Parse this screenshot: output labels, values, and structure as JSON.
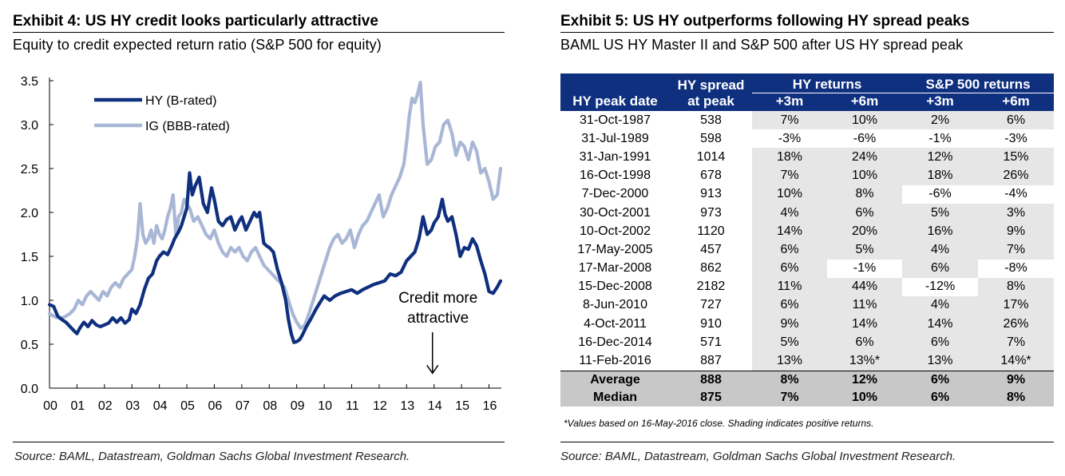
{
  "exhibit4": {
    "title": "Exhibit 4: US HY credit looks particularly attractive",
    "subtitle": "Equity to credit expected return ratio (S&P 500 for equity)",
    "source": "Source: BAML, Datastream, Goldman Sachs Global Investment Research."
  },
  "exhibit5": {
    "title": "Exhibit 5: US HY outperforms following HY spread peaks",
    "subtitle": "BAML US HY Master II and S&P 500 after US HY spread peak",
    "header": {
      "peak_date": "HY peak date",
      "spread_line1": "HY spread",
      "spread_line2": "at peak",
      "hy_returns": "HY returns",
      "sp_returns": "S&P 500 returns",
      "m3": "+3m",
      "m6": "+6m"
    },
    "rows": [
      {
        "date": "31-Oct-1987",
        "spread": "538",
        "hy3": "7%",
        "hy6": "10%",
        "sp3": "2%",
        "sp6": "6%"
      },
      {
        "date": "31-Jul-1989",
        "spread": "598",
        "hy3": "-3%",
        "hy6": "-6%",
        "sp3": "-1%",
        "sp6": "-3%"
      },
      {
        "date": "31-Jan-1991",
        "spread": "1014",
        "hy3": "18%",
        "hy6": "24%",
        "sp3": "12%",
        "sp6": "15%"
      },
      {
        "date": "16-Oct-1998",
        "spread": "678",
        "hy3": "7%",
        "hy6": "10%",
        "sp3": "18%",
        "sp6": "26%"
      },
      {
        "date": "7-Dec-2000",
        "spread": "913",
        "hy3": "10%",
        "hy6": "8%",
        "sp3": "-6%",
        "sp6": "-4%"
      },
      {
        "date": "30-Oct-2001",
        "spread": "973",
        "hy3": "4%",
        "hy6": "6%",
        "sp3": "5%",
        "sp6": "3%"
      },
      {
        "date": "10-Oct-2002",
        "spread": "1120",
        "hy3": "14%",
        "hy6": "20%",
        "sp3": "16%",
        "sp6": "9%"
      },
      {
        "date": "17-May-2005",
        "spread": "457",
        "hy3": "6%",
        "hy6": "5%",
        "sp3": "4%",
        "sp6": "7%"
      },
      {
        "date": "17-Mar-2008",
        "spread": "862",
        "hy3": "6%",
        "hy6": "-1%",
        "sp3": "6%",
        "sp6": "-8%"
      },
      {
        "date": "15-Dec-2008",
        "spread": "2182",
        "hy3": "11%",
        "hy6": "44%",
        "sp3": "-12%",
        "sp6": "8%"
      },
      {
        "date": "8-Jun-2010",
        "spread": "727",
        "hy3": "6%",
        "hy6": "11%",
        "sp3": "4%",
        "sp6": "17%"
      },
      {
        "date": "4-Oct-2011",
        "spread": "910",
        "hy3": "9%",
        "hy6": "14%",
        "sp3": "14%",
        "sp6": "26%"
      },
      {
        "date": "16-Dec-2014",
        "spread": "571",
        "hy3": "5%",
        "hy6": "6%",
        "sp3": "6%",
        "sp6": "7%"
      },
      {
        "date": "11-Feb-2016",
        "spread": "887",
        "hy3": "13%",
        "hy6": "13%*",
        "sp3": "13%",
        "sp6": "14%*"
      }
    ],
    "summary": [
      {
        "label": "Average",
        "spread": "888",
        "hy3": "8%",
        "hy6": "12%",
        "sp3": "6%",
        "sp6": "9%"
      },
      {
        "label": "Median",
        "spread": "875",
        "hy3": "7%",
        "hy6": "10%",
        "sp3": "6%",
        "sp6": "8%"
      }
    ],
    "footnote": "*Values based on 16-May-2016 close. Shading indicates positive returns.",
    "source": "Source: BAML, Datastream, Goldman Sachs Global Investment Research."
  },
  "colors": {
    "hy_line": "#0f2f7f",
    "ig_line": "#a8b7d6",
    "header_bg": "#0f2f7f",
    "positive_shade": "#e6e6e6",
    "summary_shade": "#c8c8c8"
  },
  "chart_data": {
    "type": "line",
    "title": "Exhibit 4: US HY credit looks particularly attractive",
    "subtitle": "Equity to credit expected return ratio (S&P 500 for equity)",
    "xlabel": "",
    "ylabel": "",
    "xlim": [
      2000.0,
      2016.45
    ],
    "ylim": [
      0.0,
      3.5
    ],
    "yticks": [
      "0.0",
      "0.5",
      "1.0",
      "1.5",
      "2.0",
      "2.5",
      "3.0",
      "3.5"
    ],
    "xticks": [
      {
        "value": 2000,
        "label": "00"
      },
      {
        "value": 2001,
        "label": "01"
      },
      {
        "value": 2002,
        "label": "02"
      },
      {
        "value": 2003,
        "label": "03"
      },
      {
        "value": 2004,
        "label": "04"
      },
      {
        "value": 2005,
        "label": "05"
      },
      {
        "value": 2006,
        "label": "06"
      },
      {
        "value": 2007,
        "label": "07"
      },
      {
        "value": 2008,
        "label": "08"
      },
      {
        "value": 2009,
        "label": "09"
      },
      {
        "value": 2010,
        "label": "10"
      },
      {
        "value": 2011,
        "label": "11"
      },
      {
        "value": 2012,
        "label": "12"
      },
      {
        "value": 2013,
        "label": "13"
      },
      {
        "value": 2014,
        "label": "14"
      },
      {
        "value": 2015,
        "label": "15"
      },
      {
        "value": 2016,
        "label": "16"
      }
    ],
    "grid": false,
    "legend": "top-left",
    "annotation": {
      "text_line1": "Credit more",
      "text_line2": "attractive",
      "x": 2014.0,
      "y": 1.0,
      "arrow_to_y": 0.17
    },
    "series": [
      {
        "name": "HY (B-rated)",
        "x": [
          2000.0,
          2000.15,
          2000.3,
          2000.45,
          2000.6,
          2000.75,
          2000.9,
          2001.0,
          2001.1,
          2001.25,
          2001.4,
          2001.55,
          2001.7,
          2001.85,
          2002.0,
          2002.15,
          2002.3,
          2002.45,
          2002.6,
          2002.75,
          2002.9,
          2003.0,
          2003.15,
          2003.3,
          2003.45,
          2003.6,
          2003.75,
          2003.9,
          2004.0,
          2004.15,
          2004.3,
          2004.45,
          2004.55,
          2004.7,
          2004.8,
          2004.9,
          2005.0,
          2005.1,
          2005.2,
          2005.3,
          2005.45,
          2005.6,
          2005.75,
          2005.9,
          2006.0,
          2006.15,
          2006.3,
          2006.45,
          2006.6,
          2006.75,
          2006.9,
          2007.0,
          2007.15,
          2007.3,
          2007.45,
          2007.55,
          2007.65,
          2007.8,
          2007.9,
          2008.0,
          2008.15,
          2008.3,
          2008.45,
          2008.6,
          2008.7,
          2008.8,
          2008.9,
          2009.0,
          2009.1,
          2009.2,
          2009.35,
          2009.5,
          2009.7,
          2009.9,
          2010.0,
          2010.2,
          2010.4,
          2010.6,
          2010.8,
          2011.0,
          2011.2,
          2011.4,
          2011.6,
          2011.8,
          2012.0,
          2012.2,
          2012.4,
          2012.6,
          2012.8,
          2013.0,
          2013.15,
          2013.3,
          2013.45,
          2013.6,
          2013.75,
          2013.9,
          2014.0,
          2014.15,
          2014.3,
          2014.4,
          2014.5,
          2014.65,
          2014.8,
          2014.95,
          2015.1,
          2015.25,
          2015.4,
          2015.55,
          2015.7,
          2015.85,
          2016.0,
          2016.15,
          2016.3,
          2016.42
        ],
        "values": [
          0.95,
          0.93,
          0.82,
          0.78,
          0.75,
          0.7,
          0.65,
          0.62,
          0.68,
          0.75,
          0.7,
          0.77,
          0.72,
          0.7,
          0.72,
          0.74,
          0.8,
          0.75,
          0.8,
          0.74,
          0.78,
          0.9,
          0.85,
          0.95,
          1.12,
          1.25,
          1.3,
          1.45,
          1.5,
          1.55,
          1.52,
          1.62,
          1.7,
          1.78,
          1.85,
          1.95,
          2.05,
          2.45,
          2.2,
          2.3,
          2.4,
          2.1,
          2.0,
          2.28,
          2.15,
          1.9,
          1.85,
          1.92,
          1.95,
          1.8,
          1.9,
          1.95,
          1.8,
          1.9,
          2.0,
          1.95,
          2.0,
          1.65,
          1.62,
          1.6,
          1.55,
          1.35,
          1.2,
          1.0,
          0.78,
          0.62,
          0.52,
          0.53,
          0.55,
          0.6,
          0.7,
          0.78,
          0.9,
          1.0,
          1.05,
          1.0,
          1.05,
          1.08,
          1.1,
          1.12,
          1.08,
          1.12,
          1.15,
          1.18,
          1.2,
          1.22,
          1.3,
          1.28,
          1.32,
          1.45,
          1.5,
          1.55,
          1.7,
          1.95,
          1.75,
          1.8,
          1.88,
          1.95,
          2.15,
          1.98,
          1.9,
          1.95,
          1.75,
          1.5,
          1.6,
          1.58,
          1.7,
          1.62,
          1.45,
          1.3,
          1.1,
          1.08,
          1.15,
          1.22
        ]
      },
      {
        "name": "IG (BBB-rated)",
        "x": [
          2000.0,
          2000.15,
          2000.3,
          2000.45,
          2000.6,
          2000.75,
          2000.9,
          2001.05,
          2001.2,
          2001.35,
          2001.5,
          2001.65,
          2001.8,
          2001.95,
          2002.1,
          2002.25,
          2002.4,
          2002.55,
          2002.7,
          2002.85,
          2003.0,
          2003.1,
          2003.2,
          2003.3,
          2003.4,
          2003.5,
          2003.6,
          2003.7,
          2003.8,
          2003.9,
          2004.0,
          2004.1,
          2004.2,
          2004.3,
          2004.4,
          2004.5,
          2004.6,
          2004.7,
          2004.8,
          2004.9,
          2005.0,
          2005.1,
          2005.25,
          2005.4,
          2005.55,
          2005.7,
          2005.85,
          2006.0,
          2006.15,
          2006.3,
          2006.45,
          2006.6,
          2006.75,
          2006.9,
          2007.05,
          2007.2,
          2007.35,
          2007.5,
          2007.65,
          2007.8,
          2007.95,
          2008.1,
          2008.25,
          2008.4,
          2008.55,
          2008.7,
          2008.85,
          2009.0,
          2009.15,
          2009.3,
          2009.45,
          2009.6,
          2009.75,
          2009.9,
          2010.05,
          2010.2,
          2010.35,
          2010.5,
          2010.65,
          2010.8,
          2010.95,
          2011.1,
          2011.25,
          2011.4,
          2011.55,
          2011.7,
          2011.85,
          2012.0,
          2012.15,
          2012.3,
          2012.45,
          2012.6,
          2012.75,
          2012.9,
          2013.0,
          2013.1,
          2013.2,
          2013.3,
          2013.4,
          2013.5,
          2013.6,
          2013.75,
          2013.9,
          2014.05,
          2014.2,
          2014.35,
          2014.5,
          2014.65,
          2014.8,
          2014.95,
          2015.1,
          2015.25,
          2015.4,
          2015.55,
          2015.7,
          2015.85,
          2016.0,
          2016.15,
          2016.3,
          2016.42
        ],
        "values": [
          0.85,
          0.82,
          0.8,
          0.8,
          0.82,
          0.85,
          0.9,
          1.0,
          0.95,
          1.05,
          1.1,
          1.05,
          1.0,
          1.1,
          1.05,
          1.15,
          1.2,
          1.15,
          1.25,
          1.3,
          1.35,
          1.5,
          1.7,
          2.1,
          1.75,
          1.65,
          1.7,
          1.8,
          1.65,
          1.85,
          1.75,
          1.7,
          1.8,
          1.95,
          2.05,
          2.2,
          1.75,
          1.95,
          2.0,
          2.15,
          2.1,
          2.05,
          1.9,
          1.95,
          1.85,
          1.75,
          1.7,
          1.8,
          1.65,
          1.55,
          1.5,
          1.6,
          1.55,
          1.6,
          1.5,
          1.45,
          1.55,
          1.6,
          1.5,
          1.4,
          1.35,
          1.3,
          1.25,
          1.2,
          1.15,
          1.0,
          0.85,
          0.75,
          0.68,
          0.72,
          0.85,
          1.0,
          1.15,
          1.3,
          1.45,
          1.6,
          1.7,
          1.75,
          1.65,
          1.7,
          1.8,
          1.6,
          1.75,
          1.85,
          1.9,
          2.0,
          2.1,
          2.2,
          1.95,
          2.05,
          2.2,
          2.3,
          2.4,
          2.55,
          2.8,
          3.1,
          3.3,
          3.25,
          3.35,
          3.48,
          3.0,
          2.55,
          2.6,
          2.75,
          2.8,
          3.0,
          3.05,
          2.9,
          2.65,
          2.8,
          2.75,
          2.6,
          2.8,
          2.7,
          2.45,
          2.5,
          2.35,
          2.15,
          2.2,
          2.5
        ]
      }
    ]
  }
}
